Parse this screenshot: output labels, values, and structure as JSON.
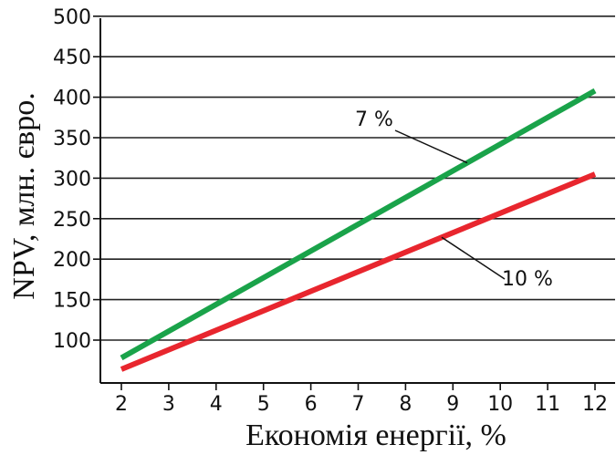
{
  "chart_data": {
    "type": "line",
    "xlabel": "Економія енергії, %",
    "ylabel": "NPV, млн. євро.",
    "x_ticks": [
      "2",
      "3",
      "4",
      "5",
      "6",
      "7",
      "8",
      "9",
      "10",
      "11",
      "12"
    ],
    "y_ticks": [
      "100",
      "150",
      "200",
      "250",
      "300",
      "350",
      "400",
      "450",
      "500"
    ],
    "xlim": [
      1.5,
      12.5
    ],
    "ylim": [
      55,
      500
    ],
    "grid": "horizontal",
    "series": [
      {
        "name": "7 %",
        "color": "#1aa34a",
        "x": [
          2,
          12
        ],
        "y": [
          78,
          408
        ]
      },
      {
        "name": "10 %",
        "color": "#e8262e",
        "x": [
          2,
          12
        ],
        "y": [
          64,
          305
        ]
      }
    ]
  }
}
